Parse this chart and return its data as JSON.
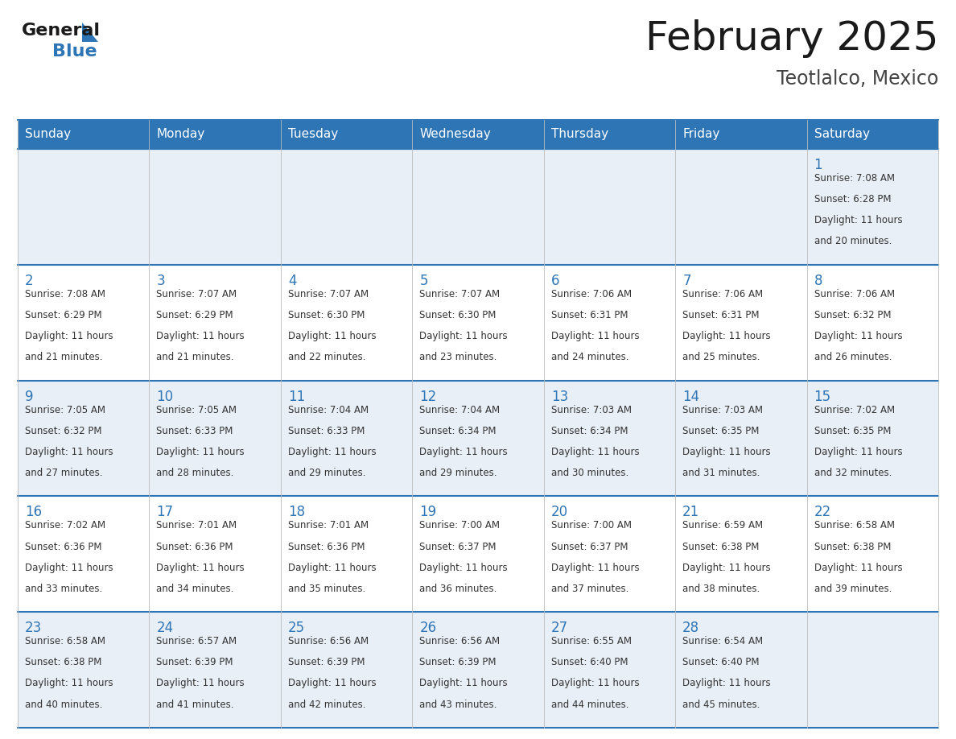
{
  "title": "February 2025",
  "subtitle": "Teotlalco, Mexico",
  "header_color": "#2E75B6",
  "header_text_color": "#FFFFFF",
  "row_bg_odd": "#E9EFF7",
  "row_bg_even": "#FFFFFF",
  "day_headers": [
    "Sunday",
    "Monday",
    "Tuesday",
    "Wednesday",
    "Thursday",
    "Friday",
    "Saturday"
  ],
  "title_color": "#1a1a1a",
  "subtitle_color": "#444444",
  "number_color": "#2E75B6",
  "text_color": "#333333",
  "line_color": "#2E75B6",
  "calendar_data": [
    [
      null,
      null,
      null,
      null,
      null,
      null,
      {
        "day": "1",
        "sunrise": "7:08 AM",
        "sunset": "6:28 PM",
        "daylight": "11 hours",
        "daylight2": "and 20 minutes."
      }
    ],
    [
      {
        "day": "2",
        "sunrise": "7:08 AM",
        "sunset": "6:29 PM",
        "daylight": "11 hours",
        "daylight2": "and 21 minutes."
      },
      {
        "day": "3",
        "sunrise": "7:07 AM",
        "sunset": "6:29 PM",
        "daylight": "11 hours",
        "daylight2": "and 21 minutes."
      },
      {
        "day": "4",
        "sunrise": "7:07 AM",
        "sunset": "6:30 PM",
        "daylight": "11 hours",
        "daylight2": "and 22 minutes."
      },
      {
        "day": "5",
        "sunrise": "7:07 AM",
        "sunset": "6:30 PM",
        "daylight": "11 hours",
        "daylight2": "and 23 minutes."
      },
      {
        "day": "6",
        "sunrise": "7:06 AM",
        "sunset": "6:31 PM",
        "daylight": "11 hours",
        "daylight2": "and 24 minutes."
      },
      {
        "day": "7",
        "sunrise": "7:06 AM",
        "sunset": "6:31 PM",
        "daylight": "11 hours",
        "daylight2": "and 25 minutes."
      },
      {
        "day": "8",
        "sunrise": "7:06 AM",
        "sunset": "6:32 PM",
        "daylight": "11 hours",
        "daylight2": "and 26 minutes."
      }
    ],
    [
      {
        "day": "9",
        "sunrise": "7:05 AM",
        "sunset": "6:32 PM",
        "daylight": "11 hours",
        "daylight2": "and 27 minutes."
      },
      {
        "day": "10",
        "sunrise": "7:05 AM",
        "sunset": "6:33 PM",
        "daylight": "11 hours",
        "daylight2": "and 28 minutes."
      },
      {
        "day": "11",
        "sunrise": "7:04 AM",
        "sunset": "6:33 PM",
        "daylight": "11 hours",
        "daylight2": "and 29 minutes."
      },
      {
        "day": "12",
        "sunrise": "7:04 AM",
        "sunset": "6:34 PM",
        "daylight": "11 hours",
        "daylight2": "and 29 minutes."
      },
      {
        "day": "13",
        "sunrise": "7:03 AM",
        "sunset": "6:34 PM",
        "daylight": "11 hours",
        "daylight2": "and 30 minutes."
      },
      {
        "day": "14",
        "sunrise": "7:03 AM",
        "sunset": "6:35 PM",
        "daylight": "11 hours",
        "daylight2": "and 31 minutes."
      },
      {
        "day": "15",
        "sunrise": "7:02 AM",
        "sunset": "6:35 PM",
        "daylight": "11 hours",
        "daylight2": "and 32 minutes."
      }
    ],
    [
      {
        "day": "16",
        "sunrise": "7:02 AM",
        "sunset": "6:36 PM",
        "daylight": "11 hours",
        "daylight2": "and 33 minutes."
      },
      {
        "day": "17",
        "sunrise": "7:01 AM",
        "sunset": "6:36 PM",
        "daylight": "11 hours",
        "daylight2": "and 34 minutes."
      },
      {
        "day": "18",
        "sunrise": "7:01 AM",
        "sunset": "6:36 PM",
        "daylight": "11 hours",
        "daylight2": "and 35 minutes."
      },
      {
        "day": "19",
        "sunrise": "7:00 AM",
        "sunset": "6:37 PM",
        "daylight": "11 hours",
        "daylight2": "and 36 minutes."
      },
      {
        "day": "20",
        "sunrise": "7:00 AM",
        "sunset": "6:37 PM",
        "daylight": "11 hours",
        "daylight2": "and 37 minutes."
      },
      {
        "day": "21",
        "sunrise": "6:59 AM",
        "sunset": "6:38 PM",
        "daylight": "11 hours",
        "daylight2": "and 38 minutes."
      },
      {
        "day": "22",
        "sunrise": "6:58 AM",
        "sunset": "6:38 PM",
        "daylight": "11 hours",
        "daylight2": "and 39 minutes."
      }
    ],
    [
      {
        "day": "23",
        "sunrise": "6:58 AM",
        "sunset": "6:38 PM",
        "daylight": "11 hours",
        "daylight2": "and 40 minutes."
      },
      {
        "day": "24",
        "sunrise": "6:57 AM",
        "sunset": "6:39 PM",
        "daylight": "11 hours",
        "daylight2": "and 41 minutes."
      },
      {
        "day": "25",
        "sunrise": "6:56 AM",
        "sunset": "6:39 PM",
        "daylight": "11 hours",
        "daylight2": "and 42 minutes."
      },
      {
        "day": "26",
        "sunrise": "6:56 AM",
        "sunset": "6:39 PM",
        "daylight": "11 hours",
        "daylight2": "and 43 minutes."
      },
      {
        "day": "27",
        "sunrise": "6:55 AM",
        "sunset": "6:40 PM",
        "daylight": "11 hours",
        "daylight2": "and 44 minutes."
      },
      {
        "day": "28",
        "sunrise": "6:54 AM",
        "sunset": "6:40 PM",
        "daylight": "11 hours",
        "daylight2": "and 45 minutes."
      },
      null
    ]
  ]
}
